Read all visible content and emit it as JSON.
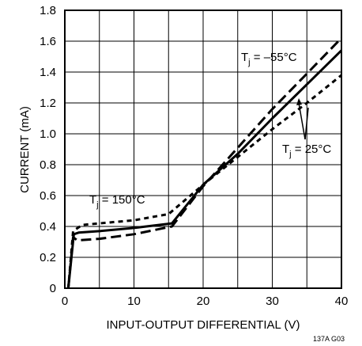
{
  "chart_data": {
    "type": "line",
    "xlabel": "INPUT-OUTPUT DIFFERENTIAL (V)",
    "ylabel": "CURRENT (mA)",
    "xlim": [
      0,
      40
    ],
    "ylim": [
      0,
      1.8
    ],
    "xticks": [
      0,
      10,
      20,
      30,
      40
    ],
    "yticks": [
      0,
      0.2,
      0.4,
      0.6,
      0.8,
      1.0,
      1.2,
      1.4,
      1.6,
      1.8
    ],
    "xtick_labels": [
      "0",
      "10",
      "20",
      "30",
      "40"
    ],
    "ytick_labels": [
      "0",
      "0.2",
      "0.4",
      "0.6",
      "0.8",
      "1.0",
      "1.2",
      "1.4",
      "1.6",
      "1.8"
    ],
    "grid": true,
    "series": [
      {
        "key": "tj_-55",
        "style": "long-dash",
        "x": [
          0.5,
          1.2,
          1.8,
          5,
          10,
          15.5,
          20,
          25,
          30,
          35,
          40
        ],
        "y": [
          0,
          0.33,
          0.31,
          0.32,
          0.35,
          0.4,
          0.66,
          0.91,
          1.16,
          1.39,
          1.62
        ]
      },
      {
        "key": "tj_25",
        "style": "solid",
        "x": [
          0.5,
          1.3,
          2,
          5,
          10,
          15.5,
          20,
          25,
          30,
          35,
          40
        ],
        "y": [
          0,
          0.35,
          0.36,
          0.37,
          0.39,
          0.42,
          0.67,
          0.87,
          1.1,
          1.32,
          1.54
        ]
      },
      {
        "key": "tj_150",
        "style": "short-dash",
        "x": [
          0.5,
          1.2,
          2.5,
          5,
          10,
          15,
          20,
          25,
          30,
          35,
          40
        ],
        "y": [
          0,
          0.37,
          0.41,
          0.42,
          0.44,
          0.48,
          0.67,
          0.85,
          1.03,
          1.2,
          1.38
        ]
      }
    ],
    "annotations": [
      {
        "main": "T",
        "sub": "j",
        "rest": " = –55°C"
      },
      {
        "main": "T",
        "sub": "j",
        "rest": " = 25°C"
      },
      {
        "main": "T",
        "sub": "j",
        "rest": " = 150°C"
      }
    ],
    "figure_code": "137A G03"
  }
}
